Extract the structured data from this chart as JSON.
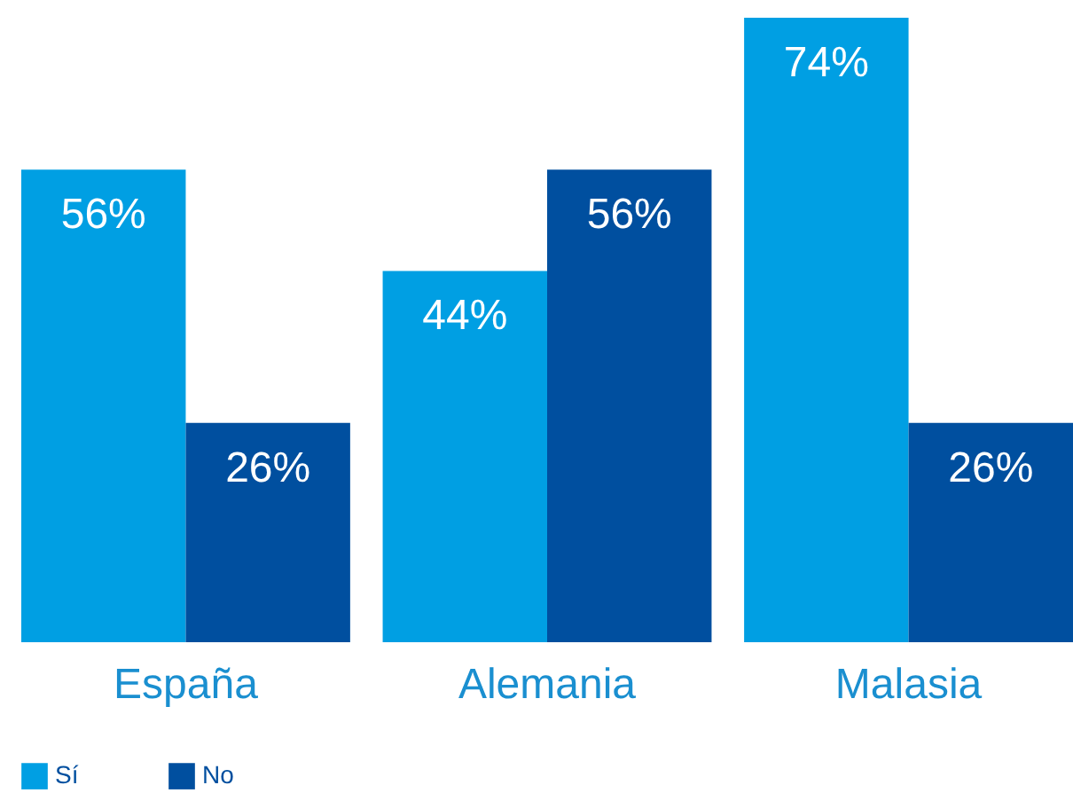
{
  "chart_data": {
    "type": "bar",
    "categories": [
      "España",
      "Alemania",
      "Malasia"
    ],
    "series": [
      {
        "name": "Sí",
        "color": "#009fe3",
        "values": [
          56,
          44,
          74
        ],
        "value_labels": [
          "56%",
          "44%",
          "74%"
        ]
      },
      {
        "name": "No",
        "color": "#004f9f",
        "values": [
          26,
          56,
          26
        ],
        "value_labels": [
          "26%",
          "56%",
          "26%"
        ]
      }
    ],
    "legend": "bottom left"
  }
}
